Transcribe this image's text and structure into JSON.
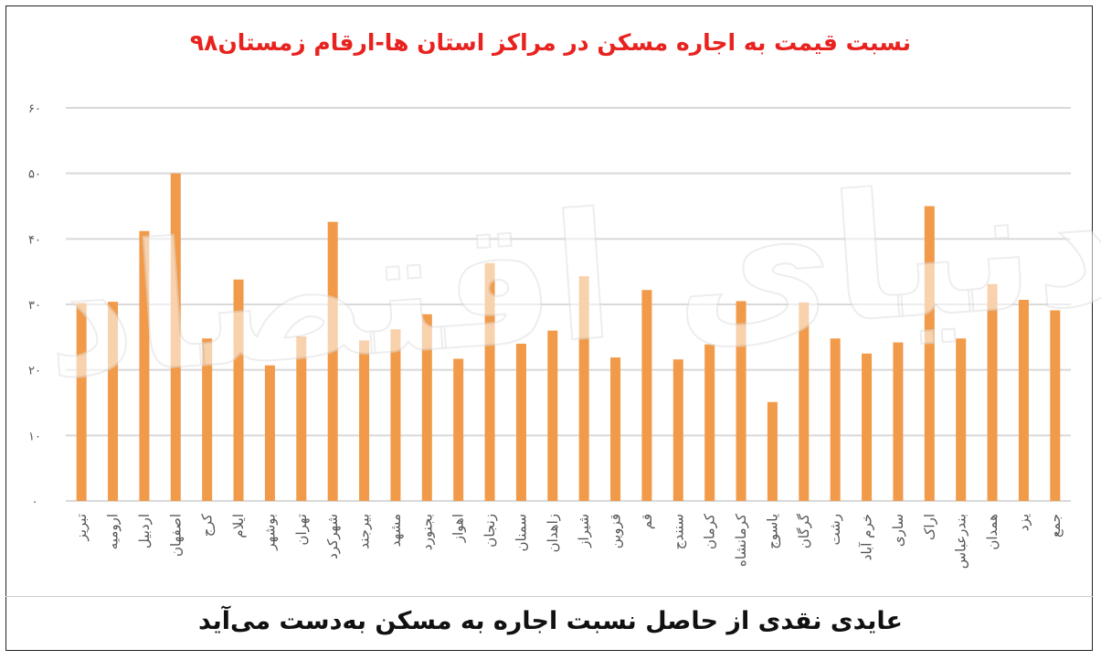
{
  "title": "نسبت قیمت به اجاره مسکن در مراکز استان ها-ارقام زمستان۹۸",
  "caption": "عایدی نقدی از حاصل نسبت اجاره به مسکن به‌دست می‌آید",
  "watermark": "دنیای اقتصاد",
  "colors": {
    "bar": "#f19a4a",
    "title": "#e8231f",
    "grid": "#d9d9d9"
  },
  "chart_data": {
    "type": "bar",
    "title": "نسبت قیمت به اجاره مسکن در مراکز استان ها-ارقام زمستان۹۸",
    "ylim": [
      0,
      60
    ],
    "yticks": [
      "۰",
      "۱۰",
      "۲۰",
      "۳۰",
      "۴۰",
      "۵۰",
      "۶۰"
    ],
    "yticks_values": [
      0,
      10,
      20,
      30,
      40,
      50,
      60
    ],
    "grid": true,
    "categories": [
      "تبریز",
      "ارومیه",
      "اردبیل",
      "اصفهان",
      "کرج",
      "ایلام",
      "بوشهر",
      "تهران",
      "شهرکرد",
      "بیرجند",
      "مشهد",
      "بجنورد",
      "اهواز",
      "زنجان",
      "سمنان",
      "زاهدان",
      "شیراز",
      "قزوین",
      "قم",
      "سنندج",
      "کرمان",
      "کرمانشاه",
      "یاسوج",
      "گرگان",
      "رشت",
      "خرم آباد",
      "ساری",
      "اراک",
      "بندرعباس",
      "همدان",
      "یزد",
      "جمع"
    ],
    "values": [
      30.2,
      30.4,
      41.2,
      50.0,
      24.8,
      33.8,
      20.7,
      25.1,
      42.6,
      24.5,
      26.2,
      28.5,
      21.7,
      36.3,
      24.0,
      26.0,
      34.3,
      21.9,
      32.2,
      21.6,
      23.9,
      30.5,
      15.1,
      30.3,
      24.8,
      22.5,
      24.2,
      45.0,
      24.8,
      33.1,
      30.7,
      29.1
    ]
  }
}
